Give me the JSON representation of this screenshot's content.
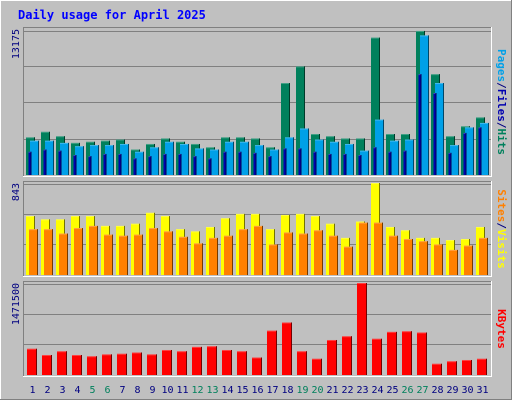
{
  "chart_data": [
    {
      "type": "bar",
      "title": "Daily usage for April 2025",
      "panel": "top",
      "y_max_label": "13175",
      "axis_label_parts": [
        {
          "text": "Pages",
          "color": "#00a0e8"
        },
        {
          "text": "/",
          "color": "#000080"
        },
        {
          "text": "Files",
          "color": "#0000b0"
        },
        {
          "text": "/",
          "color": "#000080"
        },
        {
          "text": "Hits",
          "color": "#00805c"
        }
      ],
      "ylim": [
        0,
        13175
      ],
      "grid": true,
      "categories": [
        "1",
        "2",
        "3",
        "4",
        "5",
        "6",
        "7",
        "8",
        "9",
        "10",
        "11",
        "12",
        "13",
        "14",
        "15",
        "16",
        "17",
        "18",
        "19",
        "20",
        "21",
        "22",
        "23",
        "24",
        "25",
        "26",
        "27",
        "28",
        "29",
        "30",
        "31"
      ],
      "series": [
        {
          "name": "Hits",
          "color": "#00805c",
          "values": [
            3400,
            3900,
            3500,
            2900,
            3000,
            3100,
            3200,
            2300,
            2800,
            3300,
            3000,
            2800,
            2500,
            3400,
            3400,
            3300,
            2500,
            8300,
            9800,
            3700,
            3500,
            3300,
            3300,
            12400,
            3700,
            3700,
            13000,
            9100,
            3500,
            4400,
            5200
          ]
        },
        {
          "name": "Files",
          "color": "#0000b0",
          "values": [
            2100,
            2300,
            2200,
            1800,
            1700,
            1900,
            1900,
            1500,
            1700,
            1900,
            1900,
            1700,
            1500,
            2100,
            2100,
            2000,
            1700,
            2400,
            2400,
            2100,
            1900,
            1900,
            1800,
            2500,
            2100,
            2200,
            9100,
            7400,
            2000,
            3800,
            4300
          ]
        },
        {
          "name": "Pages",
          "color": "#00a0e8",
          "values": [
            3100,
            3100,
            2900,
            2600,
            2700,
            2700,
            2800,
            2100,
            2500,
            3000,
            2800,
            2400,
            2300,
            3000,
            3000,
            2700,
            2300,
            3400,
            4200,
            3200,
            3000,
            2800,
            2200,
            5000,
            3100,
            3200,
            12600,
            8300,
            2700,
            4300,
            4700
          ]
        }
      ]
    },
    {
      "type": "bar",
      "panel": "middle",
      "y_max_label": "843",
      "axis_label_parts": [
        {
          "text": "Sites",
          "color": "#ff8000"
        },
        {
          "text": "/",
          "color": "#000080"
        },
        {
          "text": "Visits",
          "color": "#ffff00"
        }
      ],
      "ylim": [
        0,
        843
      ],
      "grid": true,
      "categories": [
        "1",
        "2",
        "3",
        "4",
        "5",
        "6",
        "7",
        "8",
        "9",
        "10",
        "11",
        "12",
        "13",
        "14",
        "15",
        "16",
        "17",
        "18",
        "19",
        "20",
        "21",
        "22",
        "23",
        "24",
        "25",
        "26",
        "27",
        "28",
        "29",
        "30",
        "31"
      ],
      "series": [
        {
          "name": "Visits",
          "color": "#ffff00",
          "values": [
            540,
            510,
            510,
            540,
            540,
            450,
            450,
            470,
            570,
            540,
            420,
            400,
            440,
            520,
            560,
            560,
            420,
            550,
            560,
            540,
            470,
            340,
            490,
            843,
            440,
            410,
            340,
            340,
            320,
            330,
            440
          ]
        },
        {
          "name": "Sites",
          "color": "#ff8000",
          "values": [
            420,
            420,
            380,
            430,
            450,
            370,
            360,
            370,
            430,
            400,
            350,
            290,
            340,
            360,
            420,
            450,
            280,
            390,
            380,
            410,
            360,
            260,
            480,
            480,
            360,
            330,
            310,
            280,
            230,
            270,
            340
          ]
        }
      ]
    },
    {
      "type": "bar",
      "panel": "bottom",
      "y_max_label": "1471500",
      "axis_label_parts": [
        {
          "text": "KBytes",
          "color": "#ff0000"
        }
      ],
      "ylim": [
        0,
        1471500
      ],
      "grid": true,
      "categories": [
        "1",
        "2",
        "3",
        "4",
        "5",
        "6",
        "7",
        "8",
        "9",
        "10",
        "11",
        "12",
        "13",
        "14",
        "15",
        "16",
        "17",
        "18",
        "19",
        "20",
        "21",
        "22",
        "23",
        "24",
        "25",
        "26",
        "27",
        "28",
        "29",
        "30",
        "31"
      ],
      "series": [
        {
          "name": "KBytes",
          "color": "#ff0000",
          "values": [
            420000,
            320000,
            380000,
            320000,
            300000,
            330000,
            340000,
            360000,
            330000,
            400000,
            380000,
            450000,
            460000,
            400000,
            380000,
            280000,
            710000,
            840000,
            380000,
            260000,
            560000,
            620000,
            1471500,
            580000,
            690000,
            700000,
            680000,
            180000,
            220000,
            240000,
            260000
          ]
        }
      ]
    }
  ],
  "x_axis": {
    "days": [
      "1",
      "2",
      "3",
      "4",
      "5",
      "6",
      "7",
      "8",
      "9",
      "10",
      "11",
      "12",
      "13",
      "14",
      "15",
      "16",
      "17",
      "18",
      "19",
      "20",
      "21",
      "22",
      "23",
      "24",
      "25",
      "26",
      "27",
      "28",
      "29",
      "30",
      "31"
    ],
    "weekend_days": [
      "5",
      "6",
      "12",
      "13",
      "19",
      "20",
      "26",
      "27"
    ],
    "weekday_color": "#000080",
    "weekend_color": "#00805c"
  },
  "colors": {
    "frame_bg": "#c0c0c0",
    "plot_bg": "#c0c0c0",
    "title": "#0000ff",
    "y_max_label": "#000080",
    "grid": "#808080"
  }
}
